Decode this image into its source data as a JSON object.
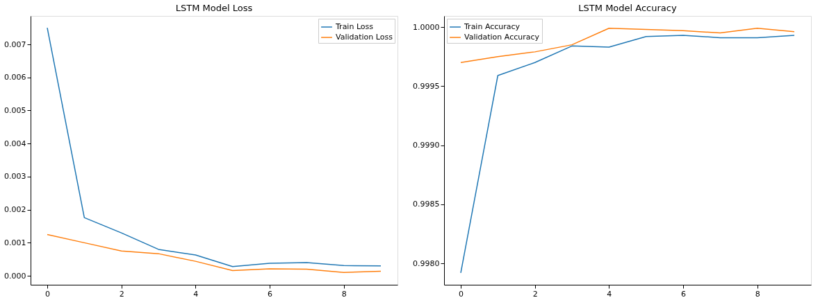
{
  "chart_data": [
    {
      "type": "line",
      "title": "LSTM Model Loss",
      "x": [
        0,
        1,
        2,
        3,
        4,
        5,
        6,
        7,
        8,
        9
      ],
      "xlim": [
        -0.45,
        9.45
      ],
      "xticks": [
        0,
        2,
        4,
        6,
        8
      ],
      "ylim": [
        -0.00027,
        0.00786
      ],
      "yticks": [
        {
          "value": 0,
          "label": "0.000"
        },
        {
          "value": 0.001,
          "label": "0.001"
        },
        {
          "value": 0.002,
          "label": "0.002"
        },
        {
          "value": 0.003,
          "label": "0.003"
        },
        {
          "value": 0.004,
          "label": "0.004"
        },
        {
          "value": 0.005,
          "label": "0.005"
        },
        {
          "value": 0.006,
          "label": "0.006"
        },
        {
          "value": 0.007,
          "label": "0.007"
        }
      ],
      "grid": false,
      "legend": "top right",
      "series": [
        {
          "name": "Train Loss",
          "color": "#1f77b4",
          "values": [
            0.0075,
            0.00176,
            0.0013,
            0.0008,
            0.00063,
            0.00028,
            0.00038,
            0.0004,
            0.00031,
            0.0003
          ]
        },
        {
          "name": "Validation Loss",
          "color": "#ff7f0e",
          "values": [
            0.00125,
            0.001,
            0.00075,
            0.00067,
            0.00044,
            0.00016,
            0.00021,
            0.0002,
            0.0001,
            0.00014
          ]
        }
      ]
    },
    {
      "type": "line",
      "title": "LSTM Model Accuracy",
      "x": [
        0,
        1,
        2,
        3,
        4,
        5,
        6,
        7,
        8,
        9
      ],
      "xlim": [
        -0.45,
        9.45
      ],
      "xticks": [
        0,
        2,
        4,
        6,
        8
      ],
      "ylim": [
        0.99782,
        1.000094
      ],
      "yticks": [
        {
          "value": 0.998,
          "label": "0.9980"
        },
        {
          "value": 0.9985,
          "label": "0.9985"
        },
        {
          "value": 0.999,
          "label": "0.9990"
        },
        {
          "value": 0.9995,
          "label": "0.9995"
        },
        {
          "value": 1.0,
          "label": "1.0000"
        }
      ],
      "grid": false,
      "legend": "top left",
      "series": [
        {
          "name": "Train Accuracy",
          "color": "#1f77b4",
          "values": [
            0.99792,
            0.99959,
            0.9997,
            0.99984,
            0.99983,
            0.99992,
            0.99993,
            0.99991,
            0.99991,
            0.99993
          ]
        },
        {
          "name": "Validation Accuracy",
          "color": "#ff7f0e",
          "values": [
            0.9997,
            0.99975,
            0.99979,
            0.99985,
            0.99999,
            0.99998,
            0.99997,
            0.99995,
            0.99999,
            0.99996
          ]
        }
      ]
    }
  ]
}
